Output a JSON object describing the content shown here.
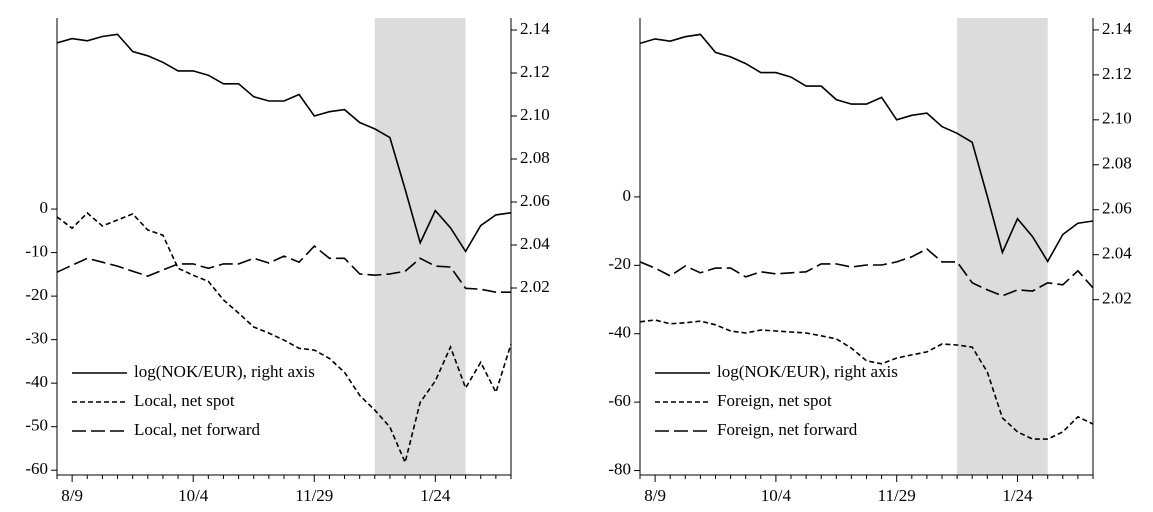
{
  "chart_data": [
    {
      "type": "line",
      "categories": [
        null,
        "8/9",
        null,
        null,
        null,
        null,
        null,
        null,
        null,
        "10/4",
        null,
        null,
        null,
        null,
        null,
        null,
        null,
        "11/29",
        null,
        null,
        null,
        null,
        null,
        null,
        null,
        "1/24",
        null,
        null,
        null,
        null,
        null
      ],
      "shaded": {
        "from": 21,
        "to": 27
      },
      "ylim": [
        -61.1,
        43.9
      ],
      "yticks": [
        0,
        -10,
        -20,
        -30,
        -40,
        -50,
        -60
      ],
      "y2lim": [
        1.933,
        2.1456
      ],
      "y2ticks": [
        2.14,
        2.12,
        {
          "value": 2.1,
          "label": "2.10"
        },
        2.08,
        2.06,
        2.04,
        2.02
      ],
      "legend": "lower left",
      "series": [
        {
          "name": "log(NOK/EUR), right axis",
          "color": "#000000",
          "dash": "solid",
          "axis": "y2",
          "values": [
            2.134,
            2.136,
            2.135,
            2.137,
            2.138,
            2.13,
            2.128,
            2.125,
            2.121,
            2.121,
            2.119,
            2.115,
            2.115,
            2.109,
            2.107,
            2.107,
            2.11,
            2.1,
            2.102,
            2.103,
            2.097,
            2.094,
            2.09,
            2.066,
            2.041,
            2.056,
            2.048,
            2.037,
            2.049,
            2.054,
            2.055
          ]
        },
        {
          "name": "Local, net spot",
          "color": "#000000",
          "dash": "dotted",
          "values": [
            -1.8,
            -4.4,
            -0.9,
            -3.9,
            -2.5,
            -1.1,
            -4.8,
            -6,
            -13.6,
            -15.2,
            -16.6,
            -20.9,
            -23.9,
            -27.1,
            -28.5,
            -30.1,
            -32,
            -32.4,
            -34.3,
            -37.5,
            -42.8,
            -46.2,
            -50.1,
            -58.2,
            -44.4,
            -39.5,
            -31.7,
            -41.1,
            -35.2,
            -42.1,
            -31
          ]
        },
        {
          "name": "Local, net forward",
          "color": "#000000",
          "dash": "dashed",
          "values": [
            -14.5,
            -12.9,
            -11.3,
            -12.2,
            -13.1,
            -14.3,
            -15.4,
            -14,
            -12.6,
            -12.6,
            -13.6,
            -12.6,
            -12.6,
            -11.3,
            -12.4,
            -10.8,
            -12.2,
            -8.5,
            -11.3,
            -11.3,
            -14.9,
            -15.2,
            -14.9,
            -14.3,
            -11.3,
            -13.1,
            -13.3,
            -18.2,
            -18.4,
            -19.1,
            -19.1
          ]
        }
      ]
    },
    {
      "type": "line",
      "categories": [
        null,
        "8/9",
        null,
        null,
        null,
        null,
        null,
        null,
        null,
        "10/4",
        null,
        null,
        null,
        null,
        null,
        null,
        null,
        "11/29",
        null,
        null,
        null,
        null,
        null,
        null,
        null,
        "1/24",
        null,
        null,
        null,
        null,
        null
      ],
      "shaded": {
        "from": 21,
        "to": 27
      },
      "ylim": [
        -81.3,
        52.3
      ],
      "yticks": [
        0,
        -20,
        -40,
        -60,
        -80
      ],
      "y2lim": [
        1.942,
        2.1453
      ],
      "y2ticks": [
        2.14,
        2.12,
        {
          "value": 2.1,
          "label": "2.10"
        },
        2.08,
        2.06,
        2.04,
        2.02
      ],
      "legend": "lower left",
      "series": [
        {
          "name": "log(NOK/EUR), right axis",
          "color": "#000000",
          "dash": "solid",
          "axis": "y2",
          "values": [
            2.134,
            2.136,
            2.135,
            2.137,
            2.138,
            2.13,
            2.128,
            2.125,
            2.121,
            2.121,
            2.119,
            2.115,
            2.115,
            2.109,
            2.107,
            2.107,
            2.11,
            2.1,
            2.102,
            2.103,
            2.097,
            2.094,
            2.09,
            2.066,
            2.041,
            2.056,
            2.048,
            2.037,
            2.049,
            2.054,
            2.055
          ]
        },
        {
          "name": "Foreign, net spot",
          "color": "#000000",
          "dash": "dotted",
          "values": [
            -36.5,
            -36,
            -37.1,
            -36.8,
            -36.3,
            -37.4,
            -39.2,
            -39.8,
            -38.9,
            -39.2,
            -39.5,
            -39.8,
            -40.6,
            -41.5,
            -44.2,
            -47.9,
            -48.8,
            -47.1,
            -46.2,
            -45.3,
            -43,
            -43.3,
            -43.9,
            -51.2,
            -64.6,
            -68.7,
            -70.8,
            -70.8,
            -68.7,
            -64.3,
            -66.4
          ]
        },
        {
          "name": "Foreign, net forward",
          "color": "#000000",
          "dash": "dashed",
          "values": [
            -19,
            -20.8,
            -23.1,
            -20.2,
            -22.2,
            -20.8,
            -20.8,
            -23.4,
            -21.9,
            -22.5,
            -22.2,
            -21.9,
            -19.6,
            -19.6,
            -20.5,
            -19.9,
            -19.9,
            -19,
            -17.5,
            -15.2,
            -19,
            -19,
            -25.1,
            -27.2,
            -28.9,
            -27.2,
            -27.5,
            -25.1,
            -25.7,
            -21.6,
            -26.6
          ]
        }
      ]
    }
  ]
}
